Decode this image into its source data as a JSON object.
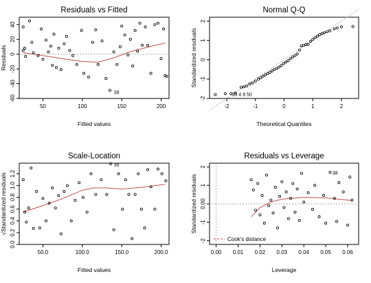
{
  "chart_data": [
    {
      "type": "scatter",
      "title": "Residuals vs Fitted",
      "xlabel": "Fitted values",
      "ylabel": "Residuals",
      "xlim": [
        20,
        210
      ],
      "ylim": [
        -60,
        50
      ],
      "x_ticks": [
        50,
        100,
        150,
        200
      ],
      "y_ticks": [
        -60,
        -40,
        -20,
        0,
        20,
        40
      ],
      "reference_line": 0,
      "points": [
        [
          25,
          37
        ],
        [
          25,
          5
        ],
        [
          27,
          8
        ],
        [
          28,
          -3
        ],
        [
          33,
          45
        ],
        [
          36,
          16
        ],
        [
          38,
          2
        ],
        [
          44,
          -2
        ],
        [
          48,
          34
        ],
        [
          50,
          -7
        ],
        [
          54,
          19
        ],
        [
          57,
          3
        ],
        [
          60,
          11
        ],
        [
          62,
          -15
        ],
        [
          64,
          27
        ],
        [
          67,
          -18
        ],
        [
          70,
          8
        ],
        [
          73,
          -21
        ],
        [
          77,
          14
        ],
        [
          80,
          24
        ],
        [
          84,
          5
        ],
        [
          88,
          -2
        ],
        [
          93,
          -14
        ],
        [
          99,
          32
        ],
        [
          102,
          -26
        ],
        [
          108,
          -31
        ],
        [
          113,
          16
        ],
        [
          117,
          33
        ],
        [
          120,
          -14
        ],
        [
          125,
          18
        ],
        [
          130,
          -33
        ],
        [
          135,
          -49
        ],
        [
          140,
          3
        ],
        [
          144,
          -14
        ],
        [
          148,
          10
        ],
        [
          150,
          38
        ],
        [
          154,
          26
        ],
        [
          158,
          -1
        ],
        [
          161,
          20
        ],
        [
          164,
          -16
        ],
        [
          167,
          32
        ],
        [
          170,
          4
        ],
        [
          173,
          42
        ],
        [
          176,
          12
        ],
        [
          180,
          37
        ],
        [
          183,
          12
        ],
        [
          187,
          -26
        ],
        [
          192,
          40
        ],
        [
          196,
          42
        ],
        [
          200,
          -6
        ],
        [
          203,
          34
        ],
        [
          205,
          -29
        ],
        [
          207,
          -30
        ]
      ],
      "smoother": [
        [
          25,
          2
        ],
        [
          50,
          -2
        ],
        [
          80,
          -7
        ],
        [
          100,
          -10
        ],
        [
          120,
          -11
        ],
        [
          140,
          -5
        ],
        [
          160,
          3
        ],
        [
          185,
          10
        ],
        [
          205,
          15
        ]
      ],
      "point_labels": [
        {
          "text": "38",
          "x": 140,
          "y": -51
        }
      ]
    },
    {
      "type": "scatter",
      "title": "Normal Q-Q",
      "xlabel": "Theoretical Quantiles",
      "ylabel": "Standardized residuals",
      "xlim": [
        -2.6,
        2.6
      ],
      "ylim": [
        -2.0,
        2.2
      ],
      "x_ticks": [
        -2,
        -1,
        0,
        1,
        2
      ],
      "y_ticks": [
        -2,
        -1,
        0,
        1,
        2
      ],
      "reference_line": [
        [
          -2.6,
          -2.6
        ],
        [
          2.6,
          2.6
        ]
      ],
      "points": [
        [
          -2.4,
          -1.8
        ],
        [
          -2.05,
          -1.75
        ],
        [
          -1.85,
          -1.75
        ],
        [
          -1.7,
          -1.73
        ],
        [
          -1.5,
          -1.42
        ],
        [
          -1.4,
          -1.4
        ],
        [
          -1.3,
          -1.35
        ],
        [
          -1.2,
          -1.25
        ],
        [
          -1.1,
          -1.2
        ],
        [
          -1.0,
          -1.1
        ],
        [
          -0.9,
          -1.0
        ],
        [
          -0.82,
          -0.93
        ],
        [
          -0.74,
          -0.85
        ],
        [
          -0.66,
          -0.78
        ],
        [
          -0.58,
          -0.72
        ],
        [
          -0.5,
          -0.65
        ],
        [
          -0.42,
          -0.58
        ],
        [
          -0.34,
          -0.5
        ],
        [
          -0.26,
          -0.45
        ],
        [
          -0.18,
          -0.38
        ],
        [
          -0.1,
          -0.3
        ],
        [
          -0.02,
          -0.2
        ],
        [
          0.06,
          -0.12
        ],
        [
          0.14,
          -0.05
        ],
        [
          0.22,
          0.05
        ],
        [
          0.3,
          0.15
        ],
        [
          0.38,
          0.22
        ],
        [
          0.46,
          0.3
        ],
        [
          0.54,
          0.5
        ],
        [
          0.6,
          0.72
        ],
        [
          0.68,
          0.75
        ],
        [
          0.76,
          0.78
        ],
        [
          0.84,
          0.8
        ],
        [
          0.92,
          0.95
        ],
        [
          1.0,
          1.05
        ],
        [
          1.08,
          1.15
        ],
        [
          1.16,
          1.22
        ],
        [
          1.24,
          1.3
        ],
        [
          1.32,
          1.35
        ],
        [
          1.4,
          1.4
        ],
        [
          1.5,
          1.45
        ],
        [
          1.6,
          1.5
        ],
        [
          1.75,
          1.6
        ],
        [
          1.85,
          1.65
        ],
        [
          2.0,
          1.7
        ],
        [
          2.4,
          1.72
        ]
      ],
      "point_labels": [
        {
          "text": "33 4 9 50",
          "x": -1.82,
          "y": -1.77
        }
      ]
    },
    {
      "type": "scatter",
      "title": "Scale-Location",
      "xlabel": "Fitted values",
      "ylabel": "√Standardized residuals",
      "xlim": [
        20,
        210
      ],
      "ylim": [
        0,
        1.38
      ],
      "x_ticks": [
        50,
        100,
        150,
        200
      ],
      "y_ticks": [
        0.0,
        0.2,
        0.4,
        0.6,
        0.8,
        1.0,
        1.2
      ],
      "points": [
        [
          25,
          1.1
        ],
        [
          27,
          0.55
        ],
        [
          29,
          0.38
        ],
        [
          32,
          0.62
        ],
        [
          35,
          1.3
        ],
        [
          38,
          0.27
        ],
        [
          42,
          0.9
        ],
        [
          46,
          0.28
        ],
        [
          50,
          0.78
        ],
        [
          54,
          0.4
        ],
        [
          58,
          0.7
        ],
        [
          62,
          0.96
        ],
        [
          66,
          0.62
        ],
        [
          70,
          0.83
        ],
        [
          73,
          0.18
        ],
        [
          77,
          0.9
        ],
        [
          81,
          1.0
        ],
        [
          86,
          0.4
        ],
        [
          91,
          0.75
        ],
        [
          96,
          1.05
        ],
        [
          101,
          0.8
        ],
        [
          106,
          0.55
        ],
        [
          111,
          1.2
        ],
        [
          117,
          0.85
        ],
        [
          124,
          1.1
        ],
        [
          131,
          0.85
        ],
        [
          136,
          1.37
        ],
        [
          140,
          0.25
        ],
        [
          146,
          1.2
        ],
        [
          151,
          0.6
        ],
        [
          155,
          1.1
        ],
        [
          159,
          0.85
        ],
        [
          163,
          0.1
        ],
        [
          167,
          0.85
        ],
        [
          171,
          1.2
        ],
        [
          175,
          0.6
        ],
        [
          179,
          0.28
        ],
        [
          183,
          1.27
        ],
        [
          187,
          0.98
        ],
        [
          192,
          0.6
        ],
        [
          196,
          1.28
        ],
        [
          201,
          1.2
        ],
        [
          206,
          1.08
        ]
      ],
      "smoother": [
        [
          25,
          0.55
        ],
        [
          50,
          0.66
        ],
        [
          75,
          0.78
        ],
        [
          100,
          0.92
        ],
        [
          115,
          0.96
        ],
        [
          130,
          0.96
        ],
        [
          150,
          0.94
        ],
        [
          175,
          0.97
        ],
        [
          205,
          1.02
        ]
      ],
      "point_labels": [
        {
          "text": "38",
          "x": 140,
          "y": 1.36
        }
      ]
    },
    {
      "type": "scatter",
      "title": "Residuals vs Leverage",
      "xlabel": "Leverage",
      "ylabel": "Standardized residuals",
      "xlim": [
        -0.003,
        0.065
      ],
      "ylim": [
        -2.2,
        2.2
      ],
      "x_ticks": [
        0.0,
        0.01,
        0.02,
        0.03,
        0.04,
        0.05,
        0.06
      ],
      "y_ticks": [
        -2,
        -1,
        0,
        1,
        2
      ],
      "reference_line": 0,
      "legend": {
        "position": "bottom-left",
        "label": "Cook's distance"
      },
      "points": [
        [
          0.016,
          1.3
        ],
        [
          0.017,
          0.75
        ],
        [
          0.018,
          -0.35
        ],
        [
          0.019,
          1.1
        ],
        [
          0.02,
          -0.6
        ],
        [
          0.021,
          0.45
        ],
        [
          0.022,
          -1.05
        ],
        [
          0.023,
          1.55
        ],
        [
          0.024,
          -0.1
        ],
        [
          0.025,
          0.2
        ],
        [
          0.026,
          -0.5
        ],
        [
          0.027,
          0.9
        ],
        [
          0.028,
          -1.3
        ],
        [
          0.029,
          0.4
        ],
        [
          0.03,
          1.2
        ],
        [
          0.031,
          -0.2
        ],
        [
          0.032,
          0.65
        ],
        [
          0.033,
          -0.8
        ],
        [
          0.034,
          0.3
        ],
        [
          0.035,
          1.1
        ],
        [
          0.036,
          -0.45
        ],
        [
          0.037,
          0.8
        ],
        [
          0.038,
          -0.9
        ],
        [
          0.039,
          1.65
        ],
        [
          0.04,
          0.1
        ],
        [
          0.042,
          0.6
        ],
        [
          0.044,
          -0.3
        ],
        [
          0.045,
          1.0
        ],
        [
          0.047,
          -0.7
        ],
        [
          0.049,
          0.45
        ],
        [
          0.05,
          -1.05
        ],
        [
          0.052,
          1.7
        ],
        [
          0.054,
          0.3
        ],
        [
          0.055,
          -0.95
        ],
        [
          0.056,
          1.15
        ],
        [
          0.058,
          0.65
        ],
        [
          0.06,
          -1.15
        ],
        [
          0.061,
          1.45
        ],
        [
          0.062,
          0.2
        ]
      ],
      "smoother": [
        [
          0.016,
          -0.7
        ],
        [
          0.02,
          -0.2
        ],
        [
          0.025,
          0.1
        ],
        [
          0.03,
          0.25
        ],
        [
          0.04,
          0.35
        ],
        [
          0.05,
          0.32
        ],
        [
          0.062,
          0.18
        ]
      ],
      "point_labels": [
        {
          "text": "38",
          "x": 0.053,
          "y": 1.7
        }
      ]
    }
  ]
}
